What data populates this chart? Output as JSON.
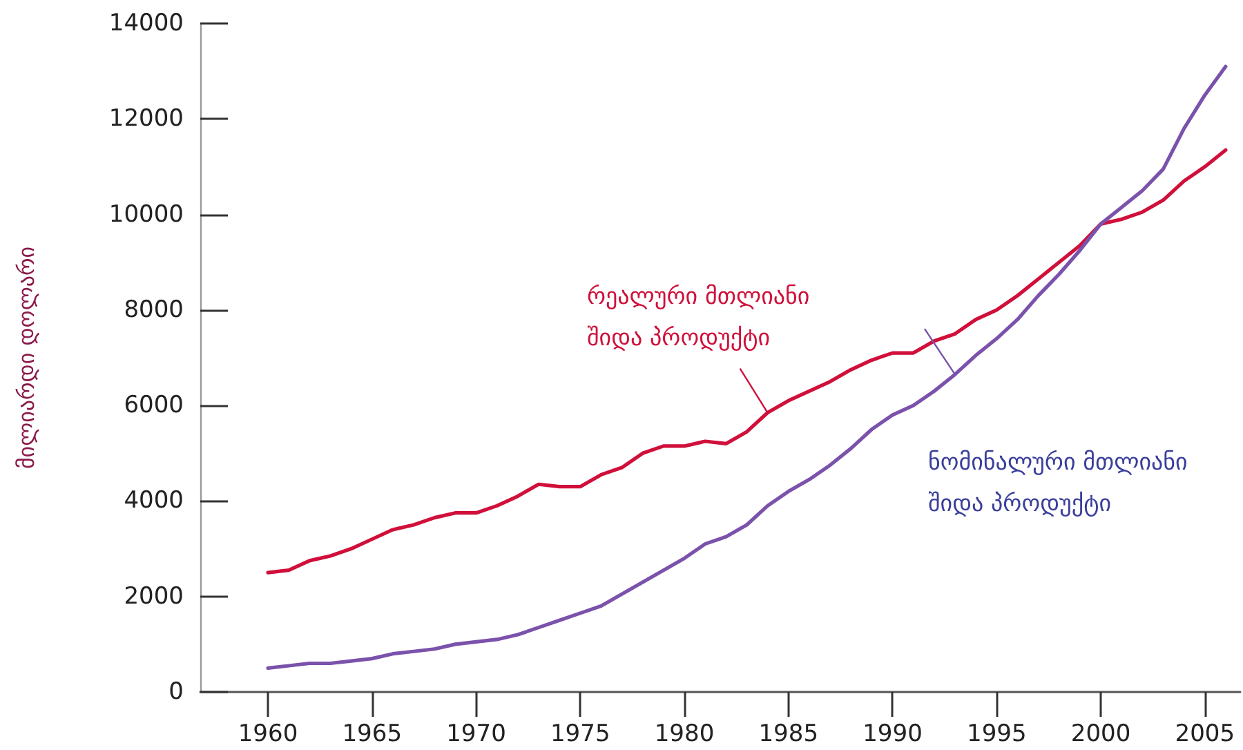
{
  "chart_data": {
    "type": "line",
    "ylabel": "მილიარდი დოლარი",
    "x": [
      1960,
      1961,
      1962,
      1963,
      1964,
      1965,
      1966,
      1967,
      1968,
      1969,
      1970,
      1971,
      1972,
      1973,
      1974,
      1975,
      1976,
      1977,
      1978,
      1979,
      1980,
      1981,
      1982,
      1983,
      1984,
      1985,
      1986,
      1987,
      1988,
      1989,
      1990,
      1991,
      1992,
      1993,
      1994,
      1995,
      1996,
      1997,
      1998,
      1999,
      2000,
      2001,
      2002,
      2003,
      2004,
      2005,
      2006
    ],
    "series": [
      {
        "name": "რეალური მთლიანი შიდა პროდუქტი",
        "color": "#d0103a",
        "values": [
          2500,
          2550,
          2750,
          2850,
          3000,
          3200,
          3400,
          3500,
          3650,
          3750,
          3750,
          3900,
          4100,
          4350,
          4300,
          4300,
          4550,
          4700,
          5000,
          5150,
          5150,
          5250,
          5200,
          5450,
          5850,
          6100,
          6300,
          6500,
          6750,
          6950,
          7100,
          7100,
          7350,
          7500,
          7800,
          8000,
          8300,
          8650,
          9000,
          9350,
          9800,
          9900,
          10050,
          10300,
          10700,
          11000,
          11350
        ]
      },
      {
        "name": "ნომინალური მთლიანი შიდა პროდუქტი",
        "color": "#7b52ab",
        "values": [
          500,
          550,
          600,
          600,
          650,
          700,
          800,
          850,
          900,
          1000,
          1050,
          1100,
          1200,
          1350,
          1500,
          1650,
          1800,
          2050,
          2300,
          2550,
          2800,
          3100,
          3250,
          3500,
          3900,
          4200,
          4450,
          4750,
          5100,
          5500,
          5800,
          6000,
          6300,
          6650,
          7050,
          7400,
          7800,
          8300,
          8750,
          9250,
          9800,
          10150,
          10500,
          10950,
          11800,
          12500,
          13100
        ]
      }
    ],
    "xlim": [
      1956.75,
      2006.7
    ],
    "xticks": [
      1960,
      1965,
      1970,
      1975,
      1980,
      1985,
      1990,
      1995,
      2000,
      2005
    ],
    "ylim": [
      0,
      14000
    ],
    "yticks": [
      0,
      2000,
      4000,
      6000,
      8000,
      10000,
      12000,
      14000
    ],
    "marker": "none",
    "line_style": "solid"
  }
}
